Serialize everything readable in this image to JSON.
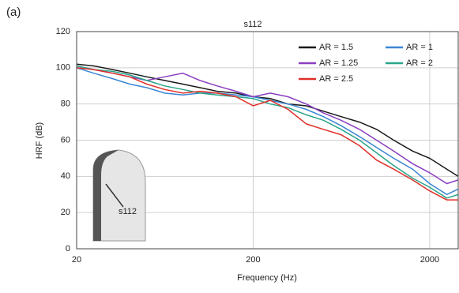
{
  "chart_data": {
    "type": "line",
    "panel_label": "(a)",
    "title": "s112",
    "annotation": "s112",
    "x_label": "Frequency (Hz)",
    "y_label": "HRF (dB)",
    "log_x": true,
    "grid": true,
    "legend": "top-right",
    "x": [
      20,
      25,
      32,
      40,
      50,
      63,
      80,
      100,
      125,
      160,
      200,
      250,
      315,
      400,
      500,
      630,
      800,
      1000,
      1250,
      1600,
      2000,
      2500,
      2900
    ],
    "xlim": [
      20,
      2900
    ],
    "xticks": [
      20,
      200,
      2000
    ],
    "ylim": [
      0,
      120
    ],
    "yticks": [
      0,
      20,
      40,
      60,
      80,
      100,
      120
    ],
    "series": [
      {
        "name": "AR = 1.5",
        "color": "#1a1a1a",
        "values": [
          102,
          101,
          99,
          97,
          95,
          93,
          91,
          89,
          87,
          86,
          84,
          83,
          80,
          79,
          76,
          73,
          70,
          66,
          60,
          54,
          50,
          44,
          40
        ]
      },
      {
        "name": "AR = 1",
        "color": "#3a86d4",
        "values": [
          100,
          97,
          94,
          91,
          89,
          86,
          85,
          86,
          86,
          85,
          84,
          82,
          80,
          77,
          73,
          68,
          62,
          56,
          50,
          44,
          36,
          30,
          33
        ]
      },
      {
        "name": "AR = 1.25",
        "color": "#8a3fc0",
        "values": [
          101,
          99,
          97,
          95,
          93,
          95,
          97,
          93,
          90,
          87,
          84,
          86,
          84,
          80,
          75,
          71,
          66,
          60,
          54,
          47,
          42,
          36,
          38
        ]
      },
      {
        "name": "AR = 2",
        "color": "#2aa58a",
        "values": [
          101,
          99,
          98,
          96,
          93,
          90,
          88,
          86,
          85,
          84,
          83,
          80,
          78,
          74,
          71,
          66,
          60,
          53,
          46,
          39,
          34,
          28,
          30
        ]
      },
      {
        "name": "AR = 2.5",
        "color": "#e0302a",
        "values": [
          100,
          99,
          97,
          95,
          91,
          88,
          86,
          87,
          86,
          84,
          79,
          82,
          77,
          69,
          66,
          63,
          57,
          49,
          44,
          38,
          32,
          27,
          27
        ]
      }
    ]
  }
}
